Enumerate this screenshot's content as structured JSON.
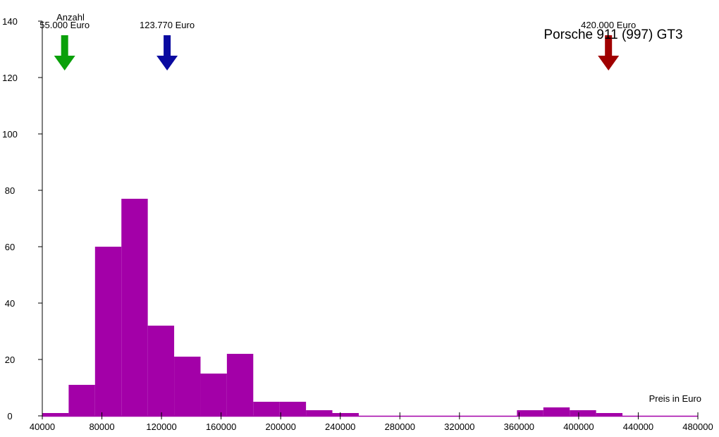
{
  "chart_data": {
    "type": "bar",
    "title": "Porsche 911 (997) GT3",
    "xlabel": "Preis in Euro",
    "ylabel": "Anzahl",
    "xlim": [
      40000,
      480000
    ],
    "ylim": [
      0,
      140
    ],
    "x_ticks": [
      "40000",
      "80000",
      "120000",
      "160000",
      "200000",
      "240000",
      "280000",
      "320000",
      "360000",
      "400000",
      "440000",
      "480000"
    ],
    "y_ticks": [
      "0",
      "20",
      "40",
      "60",
      "80",
      "100",
      "120",
      "140"
    ],
    "bins": [
      {
        "start": 40000,
        "end": 57700,
        "value": 1
      },
      {
        "start": 57700,
        "end": 75400,
        "value": 11
      },
      {
        "start": 75400,
        "end": 93100,
        "value": 60
      },
      {
        "start": 93100,
        "end": 110800,
        "value": 77
      },
      {
        "start": 110800,
        "end": 128500,
        "value": 32
      },
      {
        "start": 128500,
        "end": 146200,
        "value": 21
      },
      {
        "start": 146200,
        "end": 163900,
        "value": 15
      },
      {
        "start": 163900,
        "end": 181600,
        "value": 22
      },
      {
        "start": 181600,
        "end": 199300,
        "value": 5
      },
      {
        "start": 199300,
        "end": 217000,
        "value": 5
      },
      {
        "start": 217000,
        "end": 234700,
        "value": 2
      },
      {
        "start": 234700,
        "end": 252400,
        "value": 1
      },
      {
        "start": 252400,
        "end": 270100,
        "value": 0
      },
      {
        "start": 270100,
        "end": 287800,
        "value": 0
      },
      {
        "start": 287800,
        "end": 305500,
        "value": 0
      },
      {
        "start": 305500,
        "end": 323200,
        "value": 0
      },
      {
        "start": 323200,
        "end": 340900,
        "value": 0
      },
      {
        "start": 340900,
        "end": 358600,
        "value": 0
      },
      {
        "start": 358600,
        "end": 376300,
        "value": 2
      },
      {
        "start": 376300,
        "end": 394000,
        "value": 3
      },
      {
        "start": 394000,
        "end": 411700,
        "value": 2
      },
      {
        "start": 411700,
        "end": 429400,
        "value": 1
      }
    ],
    "bar_color": "#a300a8",
    "axis_color": "#000000",
    "baseline_color": "#a300a8",
    "markers": [
      {
        "value": 55000,
        "label": "55.000 Euro",
        "color": "#0aa00a"
      },
      {
        "value": 123770,
        "label": "123.770 Euro",
        "color": "#0a0aa0"
      },
      {
        "value": 420000,
        "label": "420.000 Euro",
        "color": "#a00000"
      }
    ],
    "grid": false
  }
}
